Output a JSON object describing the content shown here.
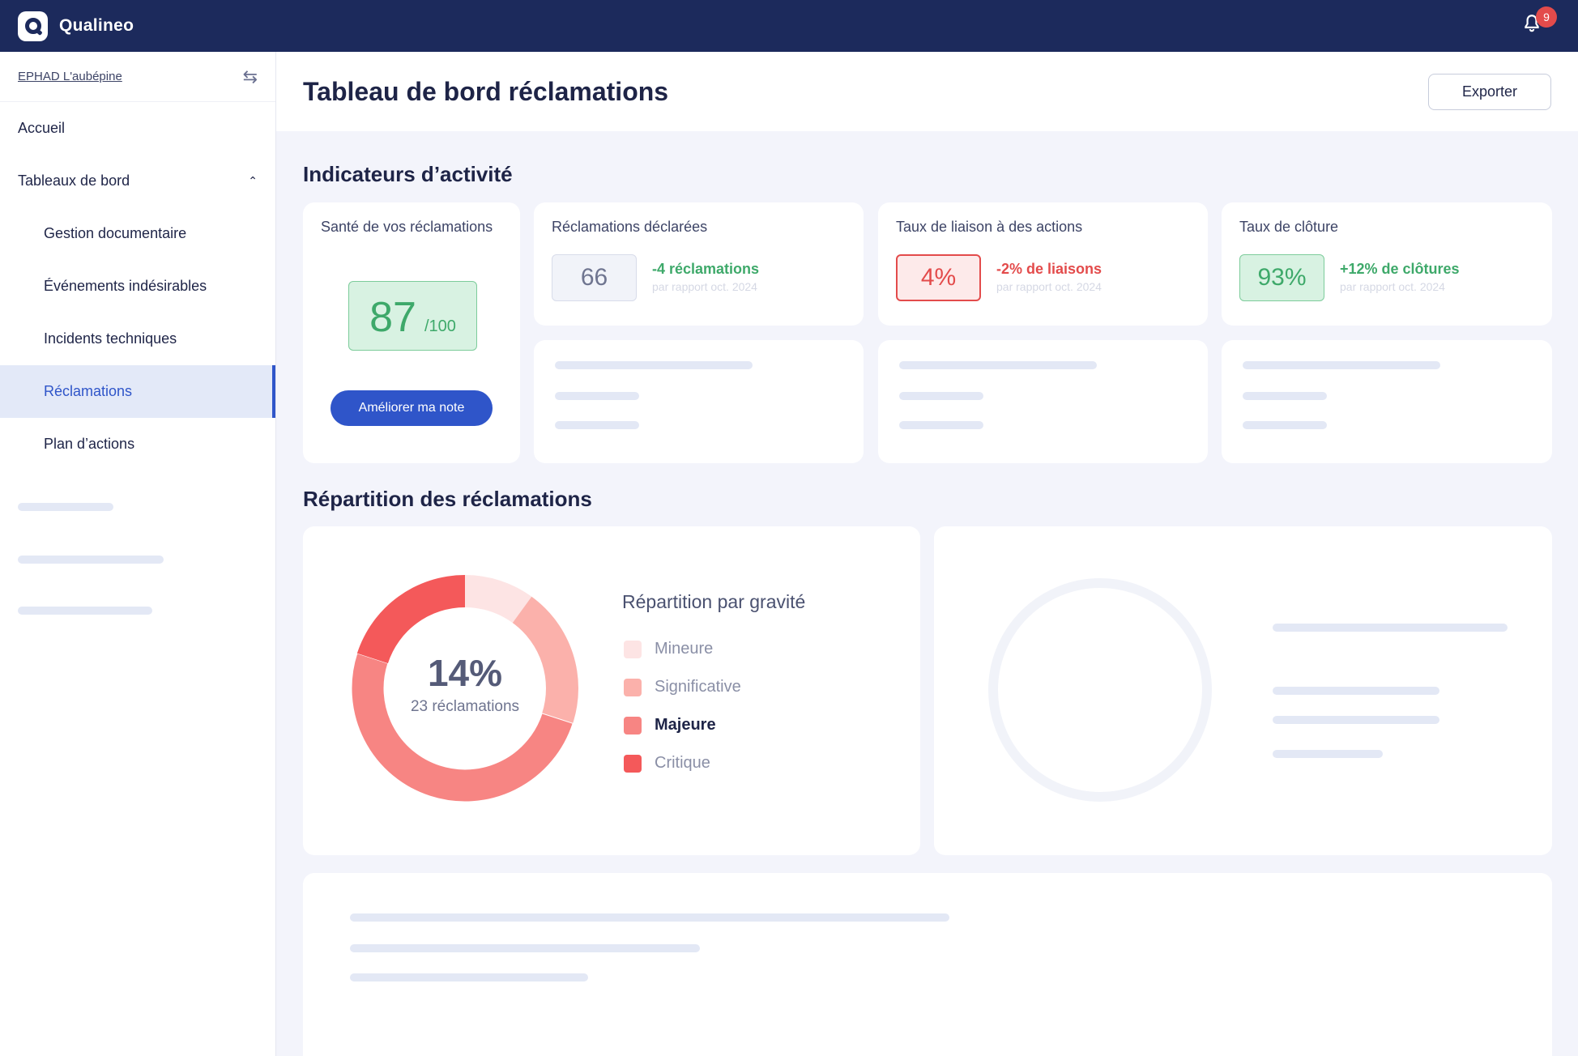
{
  "app": {
    "name": "Qualineo",
    "notification_count": "9"
  },
  "sidebar": {
    "organization": "EPHAD L'aubépine",
    "items": [
      {
        "label": "Accueil"
      },
      {
        "label": "Tableaux de bord"
      },
      {
        "label": "Gestion documentaire"
      },
      {
        "label": "Événements indésirables"
      },
      {
        "label": "Incidents techniques"
      },
      {
        "label": "Réclamations"
      },
      {
        "label": "Plan d’actions"
      }
    ]
  },
  "header": {
    "title": "Tableau de bord réclamations",
    "export_label": "Exporter"
  },
  "activity": {
    "title": "Indicateurs d’activité",
    "health": {
      "label": "Santé de vos réclamations",
      "score": "87",
      "max": "/100",
      "button": "Améliorer ma note"
    },
    "kpis": [
      {
        "label": "Réclamations déclarées",
        "value": "66",
        "delta": "-4 réclamations",
        "sub": "par rapport oct. 2024"
      },
      {
        "label": "Taux de liaison à des actions",
        "value": "4%",
        "delta": "-2% de liaisons",
        "sub": "par rapport oct. 2024"
      },
      {
        "label": "Taux de clôture",
        "value": "93%",
        "delta": "+12% de clôtures",
        "sub": "par rapport oct. 2024"
      }
    ]
  },
  "distribution": {
    "title": "Répartition des réclamations",
    "center_value": "14%",
    "center_label": "23 réclamations"
  },
  "chart_data": {
    "type": "pie",
    "title": "Répartition par gravité",
    "categories": [
      "Mineure",
      "Significative",
      "Majeure",
      "Critique"
    ],
    "values": [
      10,
      20,
      50,
      20
    ],
    "colors": [
      "#fde4e4",
      "#fbb1ab",
      "#f78583",
      "#f4595a"
    ],
    "highlighted": "Majeure",
    "legend": "right"
  }
}
